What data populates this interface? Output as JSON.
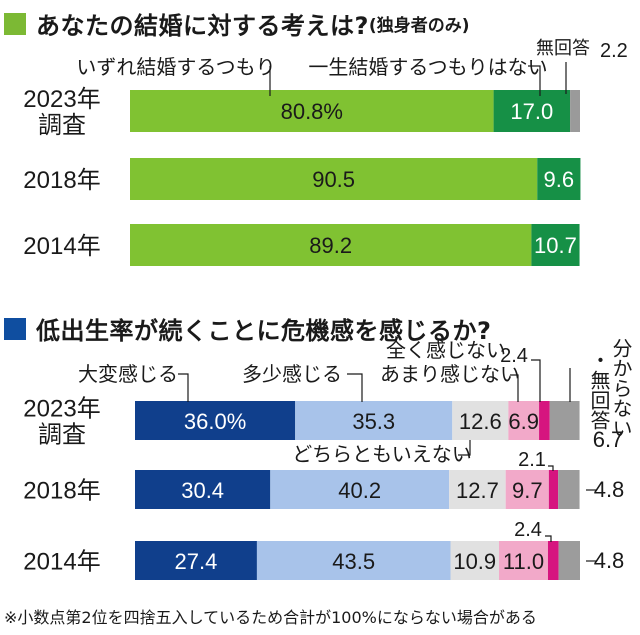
{
  "colors": {
    "green_heading": "#7cb934",
    "green_light": "#80c232",
    "green_dark": "#169046",
    "gray": "#9a9a9a",
    "navy": "#103f8c",
    "light_blue": "#a8c3ea",
    "pale_gray": "#e1e1e1",
    "pink": "#f2a9c9",
    "magenta": "#d6157f",
    "mid_gray": "#9c9c9c",
    "blue_heading": "#0f4ea0"
  },
  "footnote": "※小数点第2位を四捨五入しているため合計が100%にならない場合がある",
  "chart_data": [
    {
      "type": "bar",
      "orientation": "horizontal",
      "stacked": true,
      "title": "あなたの結婚に対する考えは?",
      "subtitle": "(独身者のみ)",
      "categories": [
        {
          "label": "2023年",
          "label2": "調査"
        },
        {
          "label": "2018年"
        },
        {
          "label": "2014年"
        }
      ],
      "series": [
        {
          "name": "いずれ結婚するつもり",
          "color": "#80c232",
          "values": [
            80.8,
            90.5,
            89.2
          ],
          "labels": [
            "80.8%",
            "90.5",
            "89.2"
          ]
        },
        {
          "name": "一生結婚するつもりはない",
          "color": "#169046",
          "values": [
            17.0,
            9.6,
            10.7
          ],
          "labels": [
            "17.0",
            "9.6",
            "10.7"
          ]
        },
        {
          "name": "無回答",
          "color": "#9a9a9a",
          "values": [
            2.2,
            0,
            0
          ],
          "labels": [
            "2.2",
            "",
            ""
          ]
        }
      ],
      "xlim": [
        0,
        100
      ]
    },
    {
      "type": "bar",
      "orientation": "horizontal",
      "stacked": true,
      "title": "低出生率が続くことに危機感を感じるか?",
      "categories": [
        {
          "label": "2023年",
          "label2": "調査"
        },
        {
          "label": "2018年"
        },
        {
          "label": "2014年"
        }
      ],
      "series": [
        {
          "name": "大変感じる",
          "color": "#103f8c",
          "values": [
            36.0,
            30.4,
            27.4
          ],
          "labels": [
            "36.0%",
            "30.4",
            "27.4"
          ]
        },
        {
          "name": "多少感じる",
          "color": "#a8c3ea",
          "values": [
            35.3,
            40.2,
            43.5
          ],
          "labels": [
            "35.3",
            "40.2",
            "43.5"
          ]
        },
        {
          "name": "どちらともいえない",
          "color": "#e1e1e1",
          "values": [
            12.6,
            12.7,
            10.9
          ],
          "labels": [
            "12.6",
            "12.7",
            "10.9"
          ]
        },
        {
          "name": "あまり感じない",
          "color": "#f2a9c9",
          "values": [
            6.9,
            9.7,
            11.0
          ],
          "labels": [
            "6.9",
            "9.7",
            "11.0"
          ]
        },
        {
          "name": "全く感じない",
          "color": "#d6157f",
          "values": [
            2.4,
            2.1,
            2.4
          ],
          "labels": [
            "2.4",
            "2.1",
            "2.4"
          ]
        },
        {
          "name": "分からない・無回答",
          "color": "#9c9c9c",
          "values": [
            6.7,
            4.8,
            4.8
          ],
          "labels": [
            "6.7",
            "4.8",
            "4.8"
          ]
        }
      ],
      "xlim": [
        0,
        100
      ]
    }
  ]
}
